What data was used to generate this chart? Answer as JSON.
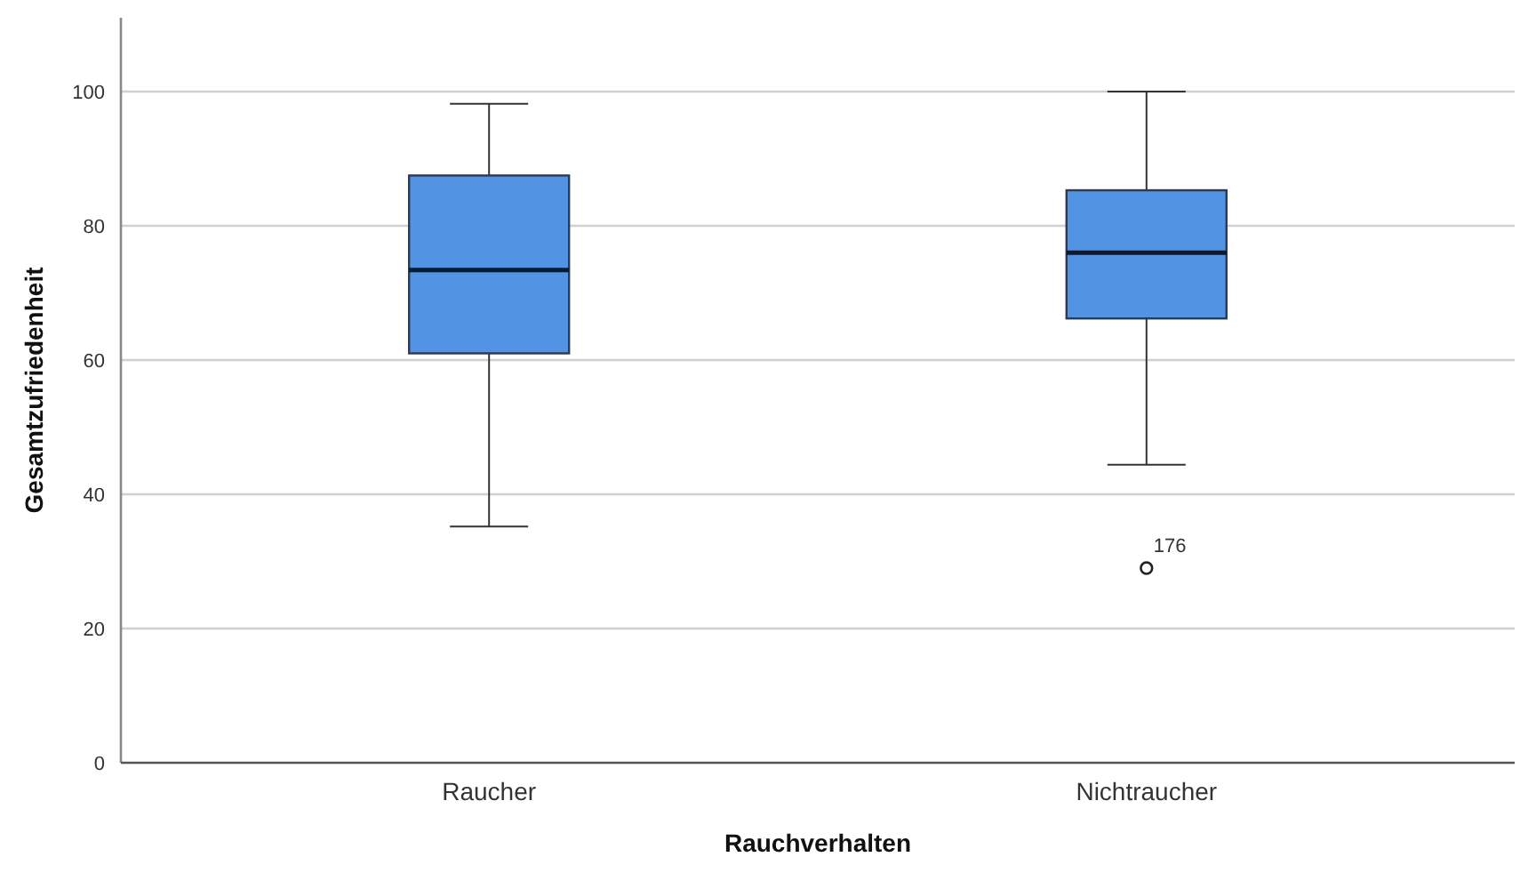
{
  "chart_data": {
    "type": "box",
    "xlabel": "Rauchverhalten",
    "ylabel": "Gesamtzufriedenheit",
    "categories": [
      "Raucher",
      "Nichtraucher"
    ],
    "color": "#5294e3",
    "boxes": [
      {
        "low": 35.2,
        "q1": 61,
        "median": 73.4,
        "q3": 87.5,
        "high": 98.2
      },
      {
        "low": 44.4,
        "q1": 66.2,
        "median": 76,
        "q3": 85.3,
        "high": 100,
        "outliers": [
          29
        ]
      }
    ],
    "annotations": [
      "176"
    ],
    "ylim": [
      0,
      111
    ],
    "yticks": [
      0,
      20,
      40,
      60,
      80,
      100
    ],
    "grid": "y"
  }
}
